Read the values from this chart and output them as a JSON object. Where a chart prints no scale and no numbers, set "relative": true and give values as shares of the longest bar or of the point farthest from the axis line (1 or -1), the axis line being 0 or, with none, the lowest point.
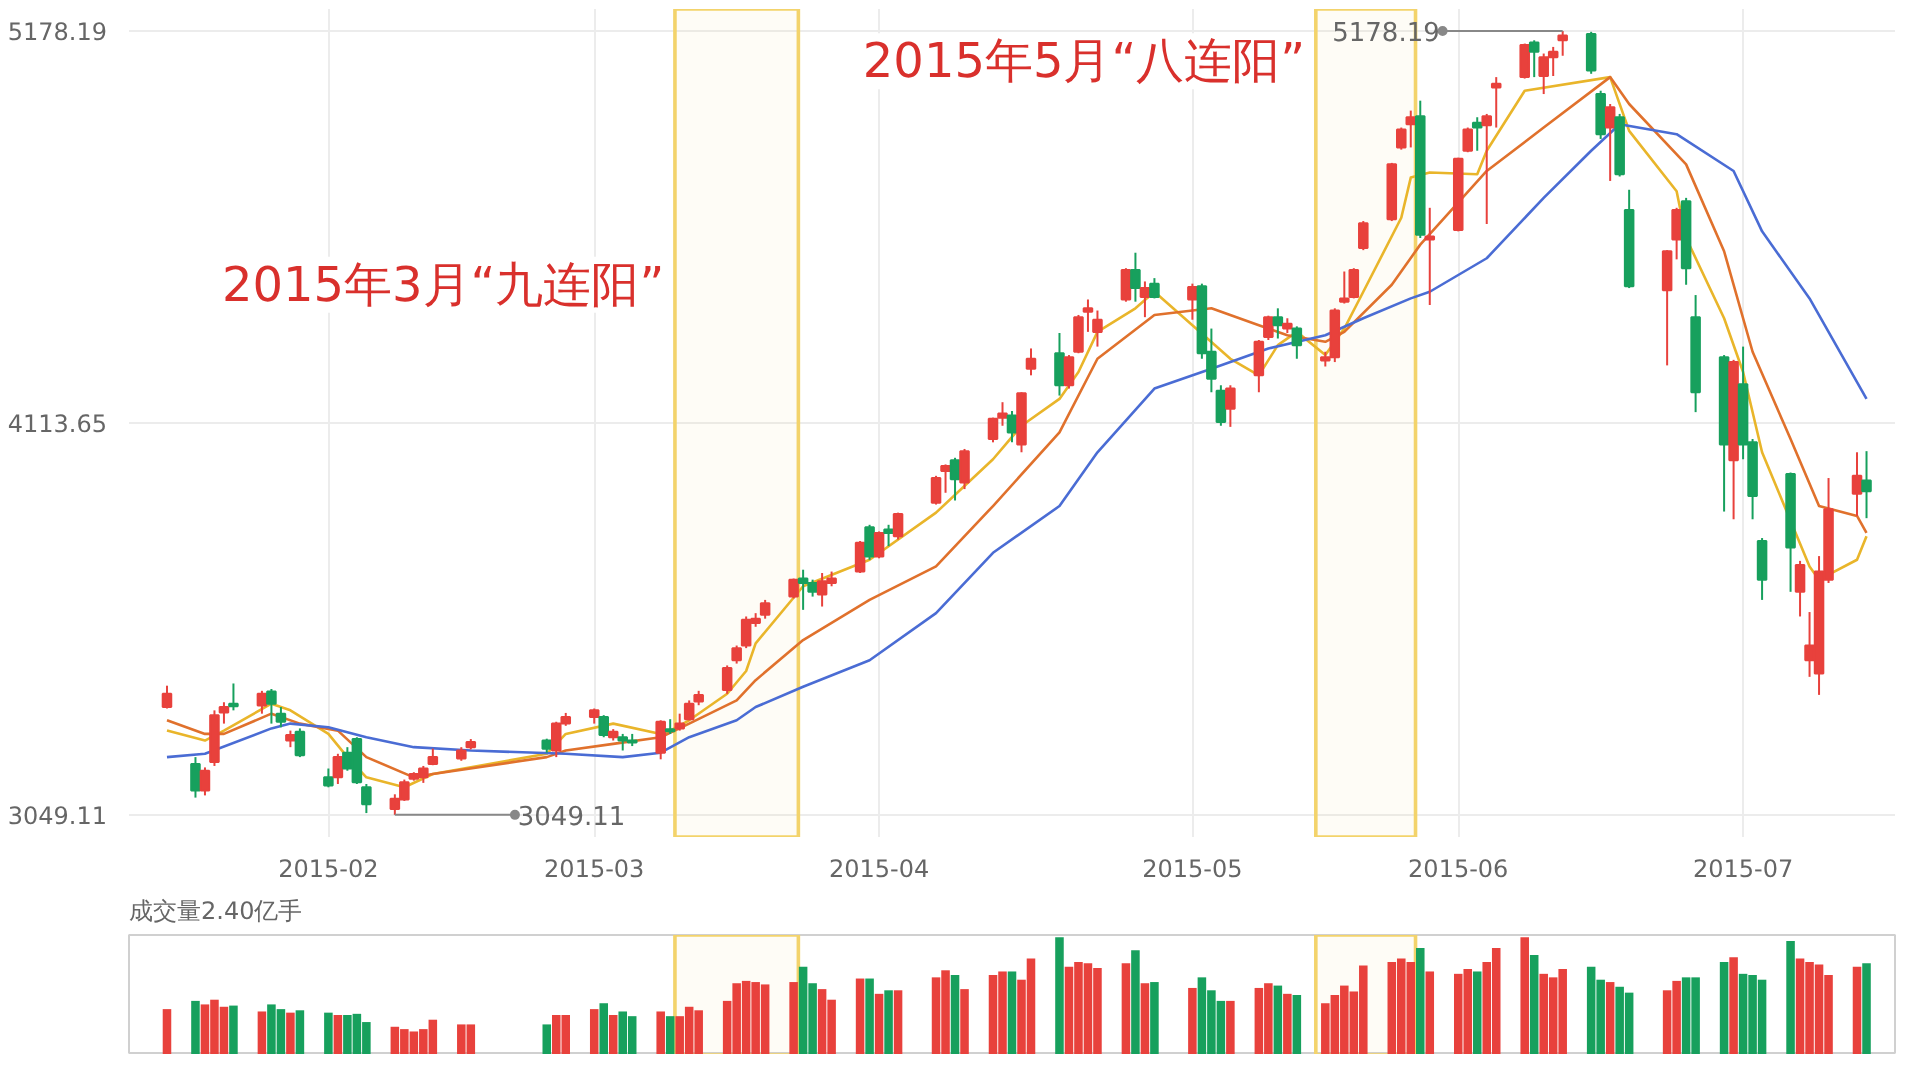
{
  "chart_data": [
    {
      "type": "candlestick",
      "colors": [
        "#e8413c",
        "#17a05d",
        "#e8413c",
        "#e8413c",
        "#e8413c",
        "#17a05d",
        "#e8413c",
        "#17a05d",
        "#17a05d",
        "#e8413c",
        "#17a05d",
        "#17a05d",
        "#e8413c",
        "#17a05d",
        "#17a05d",
        "#17a05d",
        "#e8413c",
        "#e8413c",
        "#e8413c",
        "#e8413c",
        "#e8413c",
        "#e8413c",
        "#e8413c",
        "#17a05d",
        "#e8413c",
        "#e8413c",
        "#e8413c",
        "#17a05d",
        "#e8413c",
        "#17a05d",
        "#17a05d",
        "#e8413c",
        "#17a05d",
        "#e8413c",
        "#e8413c",
        "#e8413c",
        "#e8413c",
        "#e8413c",
        "#e8413c",
        "#e8413c",
        "#e8413c",
        "#e8413c",
        "#17a05d",
        "#17a05d",
        "#e8413c",
        "#e8413c",
        "#e8413c",
        "#17a05d",
        "#e8413c",
        "#17a05d",
        "#e8413c",
        "#e8413c",
        "#e8413c",
        "#17a05d",
        "#e8413c",
        "#e8413c",
        "#e8413c",
        "#17a05d",
        "#e8413c",
        "#e8413c",
        "#17a05d",
        "#e8413c",
        "#e8413c",
        "#e8413c",
        "#e8413c",
        "#e8413c",
        "#17a05d",
        "#e8413c",
        "#17a05d",
        "#e8413c",
        "#17a05d",
        "#17a05d",
        "#17a05d",
        "#e8413c",
        "#e8413c",
        "#e8413c",
        "#17a05d",
        "#e8413c",
        "#17a05d",
        "#e8413c",
        "#e8413c",
        "#e8413c",
        "#e8413c",
        "#e8413c",
        "#e8413c",
        "#e8413c",
        "#e8413c",
        "#17a05d",
        "#e8413c",
        "#e8413c",
        "#e8413c",
        "#17a05d",
        "#e8413c",
        "#e8413c",
        "#e8413c",
        "#17a05d",
        "#e8413c",
        "#e8413c",
        "#e8413c",
        "#17a05d",
        "#17a05d",
        "#e8413c",
        "#17a05d",
        "#17a05d",
        "#e8413c",
        "#e8413c",
        "#17a05d",
        "#17a05d",
        "#17a05d",
        "#e8413c",
        "#17a05d",
        "#17a05d",
        "#17a05d",
        "#17a05d",
        "#e8413c",
        "#e8413c",
        "#e8413c",
        "#e8413c",
        "#e8413c",
        "#17a05d"
      ],
      "x": [
        "2015-01-16",
        "2015-01-19",
        "2015-01-20",
        "2015-01-21",
        "2015-01-22",
        "2015-01-23",
        "2015-01-26",
        "2015-01-27",
        "2015-01-28",
        "2015-01-29",
        "2015-01-30",
        "2015-02-02",
        "2015-02-03",
        "2015-02-04",
        "2015-02-05",
        "2015-02-06",
        "2015-02-09",
        "2015-02-10",
        "2015-02-11",
        "2015-02-12",
        "2015-02-13",
        "2015-02-16",
        "2015-02-17",
        "2015-02-25",
        "2015-02-26",
        "2015-02-27",
        "2015-03-02",
        "2015-03-03",
        "2015-03-04",
        "2015-03-05",
        "2015-03-06",
        "2015-03-09",
        "2015-03-10",
        "2015-03-11",
        "2015-03-12",
        "2015-03-13",
        "2015-03-16",
        "2015-03-17",
        "2015-03-18",
        "2015-03-19",
        "2015-03-20",
        "2015-03-23",
        "2015-03-24",
        "2015-03-25",
        "2015-03-26",
        "2015-03-27",
        "2015-03-30",
        "2015-03-31",
        "2015-04-01",
        "2015-04-02",
        "2015-04-03",
        "2015-04-07",
        "2015-04-08",
        "2015-04-09",
        "2015-04-10",
        "2015-04-13",
        "2015-04-14",
        "2015-04-15",
        "2015-04-16",
        "2015-04-17",
        "2015-04-20",
        "2015-04-21",
        "2015-04-22",
        "2015-04-23",
        "2015-04-24",
        "2015-04-27",
        "2015-04-28",
        "2015-04-29",
        "2015-04-30",
        "2015-05-04",
        "2015-05-05",
        "2015-05-06",
        "2015-05-07",
        "2015-05-08",
        "2015-05-11",
        "2015-05-12",
        "2015-05-13",
        "2015-05-14",
        "2015-05-15",
        "2015-05-18",
        "2015-05-19",
        "2015-05-20",
        "2015-05-21",
        "2015-05-22",
        "2015-05-25",
        "2015-05-26",
        "2015-05-27",
        "2015-05-28",
        "2015-05-29",
        "2015-06-01",
        "2015-06-02",
        "2015-06-03",
        "2015-06-04",
        "2015-06-05",
        "2015-06-08",
        "2015-06-09",
        "2015-06-10",
        "2015-06-11",
        "2015-06-12",
        "2015-06-15",
        "2015-06-16",
        "2015-06-17",
        "2015-06-18",
        "2015-06-19",
        "2015-06-23",
        "2015-06-24",
        "2015-06-25",
        "2015-06-26",
        "2015-06-29",
        "2015-06-30",
        "2015-07-01",
        "2015-07-02",
        "2015-07-03",
        "2015-07-06",
        "2015-07-07",
        "2015-07-08",
        "2015-07-09",
        "2015-07-10",
        "2015-07-13",
        "2015-07-14"
      ],
      "ohlc": [
        [
          3342,
          3400,
          3338,
          3378
        ],
        [
          3187,
          3206,
          3096,
          3115
        ],
        [
          3115,
          3178,
          3102,
          3169
        ],
        [
          3193,
          3333,
          3182,
          3320
        ],
        [
          3327,
          3355,
          3297,
          3342
        ],
        [
          3351,
          3406,
          3333,
          3344
        ],
        [
          3346,
          3386,
          3324,
          3378
        ],
        [
          3384,
          3391,
          3297,
          3351
        ],
        [
          3324,
          3342,
          3287,
          3302
        ],
        [
          3251,
          3278,
          3233,
          3266
        ],
        [
          3275,
          3284,
          3206,
          3211
        ],
        [
          3151,
          3175,
          3124,
          3129
        ],
        [
          3151,
          3215,
          3133,
          3206
        ],
        [
          3218,
          3233,
          3169,
          3175
        ],
        [
          3255,
          3260,
          3133,
          3138
        ],
        [
          3124,
          3133,
          3054,
          3078
        ],
        [
          3065,
          3105,
          3049.11,
          3093
        ],
        [
          3091,
          3145,
          3087,
          3138
        ],
        [
          3147,
          3165,
          3142,
          3160
        ],
        [
          3151,
          3182,
          3136,
          3175
        ],
        [
          3187,
          3229,
          3184,
          3206
        ],
        [
          3202,
          3233,
          3196,
          3224
        ],
        [
          3233,
          3255,
          3227,
          3247
        ],
        [
          3251,
          3256,
          3218,
          3229
        ],
        [
          3224,
          3302,
          3206,
          3297
        ],
        [
          3297,
          3326,
          3291,
          3315
        ],
        [
          3315,
          3338,
          3297,
          3333
        ],
        [
          3315,
          3320,
          3260,
          3266
        ],
        [
          3260,
          3282,
          3251,
          3275
        ],
        [
          3260,
          3269,
          3224,
          3251
        ],
        [
          3251,
          3269,
          3236,
          3246
        ],
        [
          3218,
          3306,
          3200,
          3302
        ],
        [
          3282,
          3309,
          3269,
          3276
        ],
        [
          3284,
          3324,
          3278,
          3297
        ],
        [
          3309,
          3360,
          3306,
          3351
        ],
        [
          3357,
          3386,
          3347,
          3375
        ],
        [
          3388,
          3455,
          3378,
          3448
        ],
        [
          3469,
          3509,
          3460,
          3502
        ],
        [
          3509,
          3588,
          3502,
          3579
        ],
        [
          3570,
          3597,
          3560,
          3582
        ],
        [
          3593,
          3633,
          3582,
          3624
        ],
        [
          3642,
          3691,
          3637,
          3688
        ],
        [
          3691,
          3715,
          3606,
          3679
        ],
        [
          3679,
          3688,
          3642,
          3655
        ],
        [
          3648,
          3706,
          3615,
          3684
        ],
        [
          3679,
          3710,
          3670,
          3691
        ],
        [
          3710,
          3793,
          3706,
          3788
        ],
        [
          3830,
          3837,
          3742,
          3751
        ],
        [
          3751,
          3819,
          3746,
          3815
        ],
        [
          3824,
          3837,
          3779,
          3815
        ],
        [
          3806,
          3870,
          3797,
          3866
        ],
        [
          3897,
          3970,
          3892,
          3964
        ],
        [
          3983,
          4001,
          3924,
          3997
        ],
        [
          4012,
          4019,
          3903,
          3961
        ],
        [
          3952,
          4043,
          3934,
          4037
        ],
        [
          4070,
          4128,
          4061,
          4125
        ],
        [
          4128,
          4170,
          4106,
          4139
        ],
        [
          4134,
          4146,
          4061,
          4088
        ],
        [
          4055,
          4197,
          4034,
          4194
        ],
        [
          4261,
          4316,
          4243,
          4288
        ],
        [
          4303,
          4358,
          4188,
          4216
        ],
        [
          4216,
          4298,
          4207,
          4292
        ],
        [
          4307,
          4407,
          4303,
          4401
        ],
        [
          4416,
          4449,
          4361,
          4425
        ],
        [
          4361,
          4419,
          4321,
          4394
        ],
        [
          4449,
          4534,
          4443,
          4529
        ],
        [
          4529,
          4576,
          4443,
          4480
        ],
        [
          4456,
          4498,
          4401,
          4480
        ],
        [
          4492,
          4507,
          4452,
          4456
        ],
        [
          4449,
          4492,
          4394,
          4483
        ],
        [
          4485,
          4492,
          4288,
          4303
        ],
        [
          4307,
          4370,
          4197,
          4234
        ],
        [
          4201,
          4216,
          4106,
          4116
        ],
        [
          4152,
          4216,
          4103,
          4207
        ],
        [
          4243,
          4339,
          4197,
          4334
        ],
        [
          4347,
          4405,
          4339,
          4401
        ],
        [
          4401,
          4425,
          4343,
          4379
        ],
        [
          4370,
          4398,
          4358,
          4383
        ],
        [
          4370,
          4376,
          4288,
          4325
        ],
        [
          4283,
          4307,
          4267,
          4292
        ],
        [
          4292,
          4425,
          4279,
          4419
        ],
        [
          4443,
          4525,
          4438,
          4452
        ],
        [
          4456,
          4534,
          4452,
          4529
        ],
        [
          4589,
          4662,
          4583,
          4656
        ],
        [
          4667,
          4820,
          4662,
          4816
        ],
        [
          4862,
          4916,
          4856,
          4911
        ],
        [
          4925,
          4962,
          4862,
          4944
        ],
        [
          4947,
          4989,
          4616,
          4625
        ],
        [
          4612,
          4698,
          4434,
          4620
        ],
        [
          4638,
          4834,
          4634,
          4831
        ],
        [
          4853,
          4916,
          4849,
          4911
        ],
        [
          4929,
          4944,
          4853,
          4916
        ],
        [
          4922,
          4953,
          4654,
          4947
        ],
        [
          5025,
          5053,
          4916,
          5035
        ],
        [
          5053,
          5144,
          5049,
          5140
        ],
        [
          5147,
          5153,
          5053,
          5122
        ],
        [
          5056,
          5117,
          5007,
          5107
        ],
        [
          5107,
          5135,
          5056,
          5122
        ],
        [
          5153,
          5178.19,
          5111,
          5166
        ],
        [
          5170,
          5176,
          5062,
          5071
        ],
        [
          5007,
          5016,
          4885,
          4898
        ],
        [
          4916,
          4980,
          4771,
          4971
        ],
        [
          4944,
          4953,
          4783,
          4789
        ],
        [
          4692,
          4747,
          4480,
          4485
        ],
        [
          4474,
          4583,
          4270,
          4580
        ],
        [
          4612,
          4698,
          4558,
          4692
        ],
        [
          4716,
          4725,
          4489,
          4534
        ],
        [
          4401,
          4461,
          4143,
          4197
        ],
        [
          4292,
          4298,
          3873,
          4055
        ],
        [
          4012,
          4285,
          3852,
          4279
        ],
        [
          4219,
          4321,
          4015,
          4055
        ],
        [
          4061,
          4070,
          3852,
          3915
        ],
        [
          3793,
          3801,
          3633,
          3688
        ],
        [
          3975,
          3979,
          3655,
          3775
        ],
        [
          3655,
          3739,
          3588,
          3728
        ],
        [
          3469,
          3600,
          3424,
          3509
        ],
        [
          3433,
          3752,
          3375,
          3710
        ],
        [
          3688,
          3964,
          3679,
          3879
        ],
        [
          3921,
          4034,
          3861,
          3970
        ],
        [
          3957,
          4037,
          3855,
          3928
        ]
      ],
      "series": [
        {
          "type": "line",
          "color": "#e9b52a",
          "x": [
            "2015-01-16",
            "2015-01-20",
            "2015-01-22",
            "2015-01-27",
            "2015-01-29",
            "2015-02-02",
            "2015-02-04",
            "2015-02-06",
            "2015-02-10",
            "2015-02-13",
            "2015-02-25",
            "2015-02-27",
            "2015-03-04",
            "2015-03-09",
            "2015-03-10",
            "2015-03-12",
            "2015-03-16",
            "2015-03-18",
            "2015-03-19",
            "2015-03-24",
            "2015-03-31",
            "2015-04-07",
            "2015-04-13",
            "2015-04-16",
            "2015-04-20",
            "2015-04-22",
            "2015-04-24",
            "2015-04-28",
            "2015-04-30",
            "2015-05-08",
            "2015-05-11",
            "2015-05-13",
            "2015-05-15",
            "2015-05-18",
            "2015-05-20",
            "2015-05-22",
            "2015-05-26",
            "2015-05-27",
            "2015-05-29",
            "2015-06-03",
            "2015-06-04",
            "2015-06-08",
            "2015-06-17",
            "2015-06-19",
            "2015-06-24",
            "2015-06-25",
            "2015-06-29",
            "2015-07-01",
            "2015-07-03",
            "2015-07-08",
            "2015-07-09",
            "2015-07-13",
            "2015-07-14"
          ],
          "values": [
            3278,
            3251,
            3278,
            3351,
            3333,
            3269,
            3206,
            3151,
            3124,
            3160,
            3215,
            3269,
            3297,
            3269,
            3278,
            3306,
            3378,
            3440,
            3515,
            3670,
            3742,
            3870,
            4015,
            4106,
            4179,
            4252,
            4361,
            4425,
            4470,
            4288,
            4243,
            4325,
            4361,
            4298,
            4370,
            4470,
            4671,
            4780,
            4794,
            4789,
            4853,
            5016,
            5053,
            4907,
            4743,
            4616,
            4398,
            4252,
            4034,
            3724,
            3688,
            3742,
            3806
          ]
        },
        {
          "type": "line",
          "color": "#e0712c",
          "x": [
            "2015-01-16",
            "2015-01-20",
            "2015-01-22",
            "2015-01-27",
            "2015-01-30",
            "2015-02-03",
            "2015-02-06",
            "2015-02-11",
            "2015-02-13",
            "2015-02-25",
            "2015-02-27",
            "2015-03-04",
            "2015-03-09",
            "2015-03-12",
            "2015-03-17",
            "2015-03-19",
            "2015-03-24",
            "2015-03-31",
            "2015-04-07",
            "2015-04-13",
            "2015-04-20",
            "2015-04-24",
            "2015-04-30",
            "2015-05-06",
            "2015-05-11",
            "2015-05-14",
            "2015-05-18",
            "2015-05-20",
            "2015-05-25",
            "2015-05-28",
            "2015-06-04",
            "2015-06-10",
            "2015-06-17",
            "2015-06-19",
            "2015-06-25",
            "2015-06-29",
            "2015-07-02",
            "2015-07-06",
            "2015-07-09",
            "2015-07-13",
            "2015-07-14"
          ],
          "values": [
            3306,
            3269,
            3269,
            3324,
            3297,
            3278,
            3206,
            3151,
            3160,
            3206,
            3224,
            3242,
            3260,
            3297,
            3360,
            3415,
            3524,
            3633,
            3724,
            3888,
            4088,
            4288,
            4407,
            4425,
            4379,
            4352,
            4334,
            4361,
            4489,
            4598,
            4798,
            4916,
            5053,
            4980,
            4816,
            4580,
            4307,
            4070,
            3888,
            3861,
            3815
          ]
        },
        {
          "type": "line",
          "color": "#4a6cd4",
          "x": [
            "2015-01-16",
            "2015-01-20",
            "2015-01-27",
            "2015-01-29",
            "2015-02-02",
            "2015-02-06",
            "2015-02-11",
            "2015-02-17",
            "2015-02-27",
            "2015-03-05",
            "2015-03-09",
            "2015-03-12",
            "2015-03-17",
            "2015-03-19",
            "2015-03-24",
            "2015-03-31",
            "2015-04-07",
            "2015-04-13",
            "2015-04-20",
            "2015-04-24",
            "2015-04-30",
            "2015-05-06",
            "2015-05-12",
            "2015-05-18",
            "2015-05-22",
            "2015-05-27",
            "2015-05-29",
            "2015-06-04",
            "2015-06-10",
            "2015-06-15",
            "2015-06-18",
            "2015-06-24",
            "2015-06-30",
            "2015-07-03",
            "2015-07-08",
            "2015-07-14"
          ],
          "values": [
            3206,
            3215,
            3284,
            3297,
            3287,
            3260,
            3233,
            3224,
            3215,
            3206,
            3218,
            3260,
            3306,
            3342,
            3397,
            3469,
            3597,
            3761,
            3888,
            4034,
            4207,
            4261,
            4316,
            4352,
            4398,
            4452,
            4470,
            4561,
            4725,
            4853,
            4925,
            4898,
            4798,
            4634,
            4452,
            4179
          ]
        }
      ],
      "ylim": [
        2989,
        5238
      ],
      "yticks": [
        3049.11,
        4113.65,
        5178.19
      ],
      "xticks": [
        {
          "value": "2015-02-02",
          "label": "2015-02"
        },
        {
          "value": "2015-03-02",
          "label": "2015-03"
        },
        {
          "value": "2015-04-01",
          "label": "2015-04"
        },
        {
          "value": "2015-05-04",
          "label": "2015-05"
        },
        {
          "value": "2015-06-01",
          "label": "2015-06"
        },
        {
          "value": "2015-07-01",
          "label": "2015-07"
        }
      ],
      "grid": true,
      "xlim": [
        "2015-01-12",
        "2015-07-17"
      ],
      "bands": [
        {
          "axis": "x",
          "from": "2015-03-10T12:00",
          "to": "2015-03-23T12:00",
          "color": "#f3d36b"
        },
        {
          "axis": "x",
          "from": "2015-05-17",
          "to": "2015-05-27T12:00",
          "color": "#f3d36b"
        }
      ],
      "annotations": [
        {
          "text": "5178.19",
          "x": "2015-06-12",
          "y": 5178.19
        },
        {
          "text": "3049.11",
          "x": "2015-02-09",
          "y": 3049.11
        },
        "2015年3月“九连阳”",
        "2015年5月“八连阳”"
      ]
    },
    {
      "type": "bar",
      "relative": true,
      "title": "成交量2.40亿手",
      "tick_labels": false,
      "xlim": [
        "2015-01-12",
        "2015-07-17"
      ],
      "x": [
        "2015-01-16",
        "2015-01-19",
        "2015-01-20",
        "2015-01-21",
        "2015-01-22",
        "2015-01-23",
        "2015-01-26",
        "2015-01-27",
        "2015-01-28",
        "2015-01-29",
        "2015-01-30",
        "2015-02-02",
        "2015-02-03",
        "2015-02-04",
        "2015-02-05",
        "2015-02-06",
        "2015-02-09",
        "2015-02-10",
        "2015-02-11",
        "2015-02-12",
        "2015-02-13",
        "2015-02-16",
        "2015-02-17",
        "2015-02-25",
        "2015-02-26",
        "2015-02-27",
        "2015-03-02",
        "2015-03-03",
        "2015-03-04",
        "2015-03-05",
        "2015-03-06",
        "2015-03-09",
        "2015-03-10",
        "2015-03-11",
        "2015-03-12",
        "2015-03-13",
        "2015-03-16",
        "2015-03-17",
        "2015-03-18",
        "2015-03-19",
        "2015-03-20",
        "2015-03-23",
        "2015-03-24",
        "2015-03-25",
        "2015-03-26",
        "2015-03-27",
        "2015-03-30",
        "2015-03-31",
        "2015-04-01",
        "2015-04-02",
        "2015-04-03",
        "2015-04-07",
        "2015-04-08",
        "2015-04-09",
        "2015-04-10",
        "2015-04-13",
        "2015-04-14",
        "2015-04-15",
        "2015-04-16",
        "2015-04-17",
        "2015-04-20",
        "2015-04-21",
        "2015-04-22",
        "2015-04-23",
        "2015-04-24",
        "2015-04-27",
        "2015-04-28",
        "2015-04-29",
        "2015-04-30",
        "2015-05-04",
        "2015-05-05",
        "2015-05-06",
        "2015-05-07",
        "2015-05-08",
        "2015-05-11",
        "2015-05-12",
        "2015-05-13",
        "2015-05-14",
        "2015-05-15",
        "2015-05-18",
        "2015-05-19",
        "2015-05-20",
        "2015-05-21",
        "2015-05-22",
        "2015-05-25",
        "2015-05-26",
        "2015-05-27",
        "2015-05-28",
        "2015-05-29",
        "2015-06-01",
        "2015-06-02",
        "2015-06-03",
        "2015-06-04",
        "2015-06-05",
        "2015-06-08",
        "2015-06-09",
        "2015-06-10",
        "2015-06-11",
        "2015-06-12",
        "2015-06-15",
        "2015-06-16",
        "2015-06-17",
        "2015-06-18",
        "2015-06-19",
        "2015-06-23",
        "2015-06-24",
        "2015-06-25",
        "2015-06-26",
        "2015-06-29",
        "2015-06-30",
        "2015-07-01",
        "2015-07-02",
        "2015-07-03",
        "2015-07-06",
        "2015-07-07",
        "2015-07-08",
        "2015-07-09",
        "2015-07-10",
        "2015-07-13",
        "2015-07-14"
      ],
      "values": [
        0.39,
        0.46,
        0.43,
        0.47,
        0.41,
        0.42,
        0.37,
        0.43,
        0.39,
        0.36,
        0.38,
        0.36,
        0.34,
        0.34,
        0.35,
        0.28,
        0.24,
        0.22,
        0.2,
        0.22,
        0.3,
        0.26,
        0.26,
        0.26,
        0.34,
        0.34,
        0.39,
        0.44,
        0.34,
        0.37,
        0.33,
        0.37,
        0.33,
        0.33,
        0.41,
        0.38,
        0.46,
        0.61,
        0.63,
        0.62,
        0.6,
        0.62,
        0.75,
        0.61,
        0.56,
        0.47,
        0.65,
        0.65,
        0.52,
        0.55,
        0.55,
        0.66,
        0.72,
        0.68,
        0.56,
        0.68,
        0.71,
        0.71,
        0.64,
        0.82,
        1,
        0.75,
        0.79,
        0.78,
        0.74,
        0.78,
        0.89,
        0.61,
        0.62,
        0.57,
        0.66,
        0.55,
        0.46,
        0.46,
        0.57,
        0.61,
        0.59,
        0.52,
        0.51,
        0.44,
        0.51,
        0.59,
        0.54,
        0.76,
        0.79,
        0.82,
        0.79,
        0.91,
        0.71,
        0.69,
        0.73,
        0.71,
        0.79,
        0.91,
        1,
        0.85,
        0.69,
        0.66,
        0.73,
        0.75,
        0.64,
        0.62,
        0.58,
        0.53,
        0.55,
        0.63,
        0.66,
        0.66,
        0.79,
        0.83,
        0.69,
        0.68,
        0.64,
        0.97,
        0.82,
        0.79,
        0.77,
        0.68,
        0.75,
        0.78
      ],
      "colors": [
        "#e8413c",
        "#17a05d",
        "#e8413c",
        "#e8413c",
        "#e8413c",
        "#17a05d",
        "#e8413c",
        "#17a05d",
        "#17a05d",
        "#e8413c",
        "#17a05d",
        "#17a05d",
        "#e8413c",
        "#17a05d",
        "#17a05d",
        "#17a05d",
        "#e8413c",
        "#e8413c",
        "#e8413c",
        "#e8413c",
        "#e8413c",
        "#e8413c",
        "#e8413c",
        "#17a05d",
        "#e8413c",
        "#e8413c",
        "#e8413c",
        "#17a05d",
        "#e8413c",
        "#17a05d",
        "#17a05d",
        "#e8413c",
        "#17a05d",
        "#e8413c",
        "#e8413c",
        "#e8413c",
        "#e8413c",
        "#e8413c",
        "#e8413c",
        "#e8413c",
        "#e8413c",
        "#e8413c",
        "#17a05d",
        "#17a05d",
        "#e8413c",
        "#e8413c",
        "#e8413c",
        "#17a05d",
        "#e8413c",
        "#17a05d",
        "#e8413c",
        "#e8413c",
        "#e8413c",
        "#17a05d",
        "#e8413c",
        "#e8413c",
        "#e8413c",
        "#17a05d",
        "#e8413c",
        "#e8413c",
        "#17a05d",
        "#e8413c",
        "#e8413c",
        "#e8413c",
        "#e8413c",
        "#e8413c",
        "#17a05d",
        "#e8413c",
        "#17a05d",
        "#e8413c",
        "#17a05d",
        "#17a05d",
        "#17a05d",
        "#e8413c",
        "#e8413c",
        "#e8413c",
        "#17a05d",
        "#e8413c",
        "#17a05d",
        "#e8413c",
        "#e8413c",
        "#e8413c",
        "#e8413c",
        "#e8413c",
        "#e8413c",
        "#e8413c",
        "#e8413c",
        "#17a05d",
        "#e8413c",
        "#e8413c",
        "#e8413c",
        "#17a05d",
        "#e8413c",
        "#e8413c",
        "#e8413c",
        "#17a05d",
        "#e8413c",
        "#e8413c",
        "#e8413c",
        "#17a05d",
        "#17a05d",
        "#e8413c",
        "#17a05d",
        "#17a05d",
        "#e8413c",
        "#e8413c",
        "#17a05d",
        "#17a05d",
        "#17a05d",
        "#e8413c",
        "#17a05d",
        "#17a05d",
        "#17a05d",
        "#17a05d",
        "#e8413c",
        "#e8413c",
        "#e8413c",
        "#e8413c",
        "#e8413c",
        "#17a05d"
      ],
      "bands": [
        {
          "axis": "x",
          "from": "2015-03-10T12:00",
          "to": "2015-03-23T12:00",
          "color": "#f3d36b"
        },
        {
          "axis": "x",
          "from": "2015-05-17",
          "to": "2015-05-27T12:00",
          "color": "#f3d36b"
        }
      ]
    }
  ]
}
